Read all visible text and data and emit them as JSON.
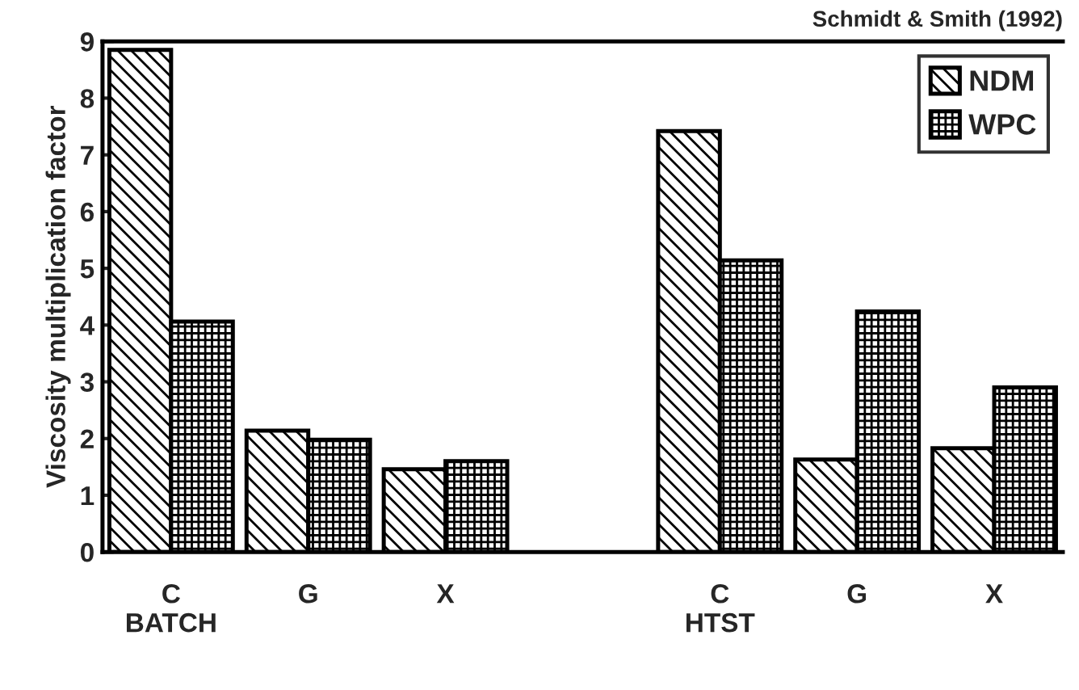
{
  "chart_data": {
    "type": "bar",
    "ylabel": "Viscosity multiplication factor",
    "annotations": [
      "Schmidt & Smith (1992)"
    ],
    "categories": [
      "C\nBATCH",
      "G",
      "X",
      null,
      "C\nHTST",
      "G",
      "X"
    ],
    "series": [
      {
        "name": "NDM",
        "color": "#000000",
        "values": [
          8.85,
          2.14,
          1.46,
          null,
          7.42,
          1.63,
          1.83
        ]
      },
      {
        "name": "WPC",
        "color": "#000000",
        "values": [
          4.06,
          1.98,
          1.6,
          null,
          5.14,
          4.24,
          2.9
        ]
      }
    ],
    "ylim": [
      0,
      9
    ],
    "yticks": [
      0,
      1,
      2,
      3,
      4,
      5,
      6,
      7,
      8,
      9
    ],
    "grid": false,
    "legend": "top right"
  }
}
